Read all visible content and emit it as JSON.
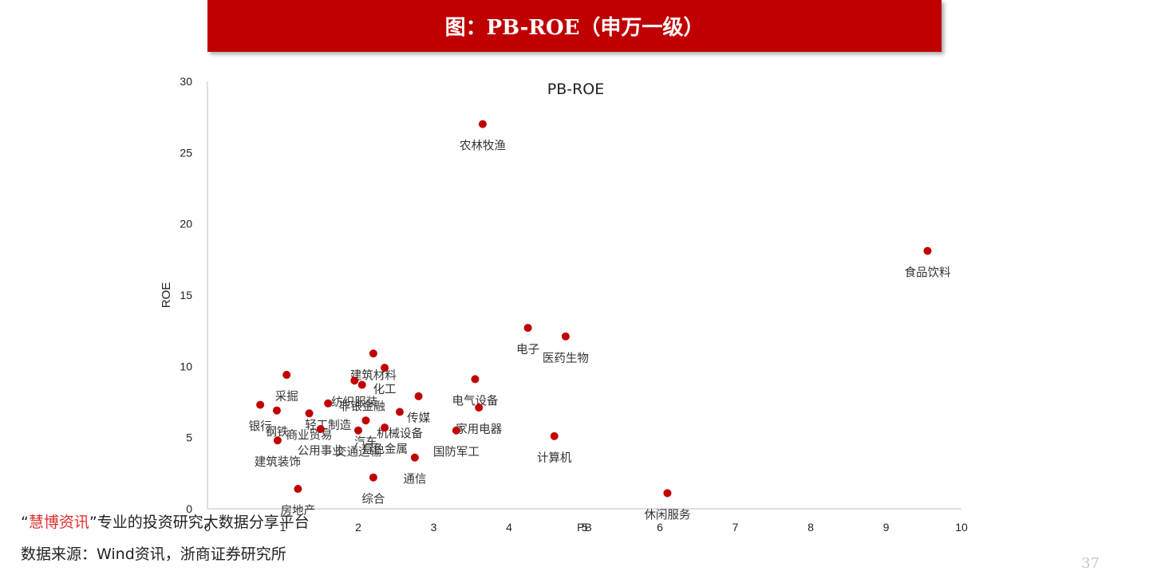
{
  "header": {
    "title": "图：PB-ROE（申万一级）"
  },
  "chart_data": {
    "type": "scatter",
    "title": "PB-ROE",
    "xlabel": "PB",
    "ylabel": "ROE",
    "xlim": [
      0,
      10
    ],
    "ylim": [
      0,
      30
    ],
    "xticks": [
      0,
      1,
      2,
      3,
      4,
      5,
      6,
      7,
      8,
      9,
      10
    ],
    "yticks": [
      0,
      5,
      10,
      15,
      20,
      25,
      30
    ],
    "marker_color": "#c00000",
    "grid": false,
    "points": [
      {
        "label": "农林牧渔",
        "x": 3.65,
        "y": 27.0
      },
      {
        "label": "食品饮料",
        "x": 9.55,
        "y": 18.1
      },
      {
        "label": "电子",
        "x": 4.25,
        "y": 12.7
      },
      {
        "label": "医药生物",
        "x": 4.75,
        "y": 12.1
      },
      {
        "label": "建筑材料",
        "x": 2.2,
        "y": 10.9
      },
      {
        "label": "化工",
        "x": 2.35,
        "y": 9.9
      },
      {
        "label": "采掘",
        "x": 1.05,
        "y": 9.4
      },
      {
        "label": "电气设备",
        "x": 3.55,
        "y": 9.1
      },
      {
        "label": "纺织服装",
        "x": 1.95,
        "y": 9.0
      },
      {
        "label": "非银金融",
        "x": 2.05,
        "y": 8.7
      },
      {
        "label": "传媒",
        "x": 2.8,
        "y": 7.9
      },
      {
        "label": "银行",
        "x": 0.7,
        "y": 7.3
      },
      {
        "label": "钢铁",
        "x": 0.92,
        "y": 6.9
      },
      {
        "label": "商业贸易",
        "x": 1.35,
        "y": 6.7
      },
      {
        "label": "家用电器",
        "x": 3.6,
        "y": 7.1
      },
      {
        "label": "汽车",
        "x": 2.1,
        "y": 6.2
      },
      {
        "label": "机械设备",
        "x": 2.55,
        "y": 6.8
      },
      {
        "label": "公用事业",
        "x": 1.5,
        "y": 5.6
      },
      {
        "label": "轻工制造",
        "x": 1.6,
        "y": 7.4
      },
      {
        "label": "有色金属",
        "x": 2.35,
        "y": 5.7
      },
      {
        "label": "交通运输",
        "x": 2.0,
        "y": 5.5
      },
      {
        "label": "建筑装饰",
        "x": 0.93,
        "y": 4.8
      },
      {
        "label": "国防军工",
        "x": 3.3,
        "y": 5.5
      },
      {
        "label": "计算机",
        "x": 4.6,
        "y": 5.1
      },
      {
        "label": "通信",
        "x": 2.75,
        "y": 3.6
      },
      {
        "label": "综合",
        "x": 2.2,
        "y": 2.2
      },
      {
        "label": "房地产",
        "x": 1.2,
        "y": 1.4
      },
      {
        "label": "休闲服务",
        "x": 6.1,
        "y": 1.1
      }
    ]
  },
  "footer": {
    "brand_quote_open": "“",
    "brand": "慧博资讯",
    "brand_quote_close": "”",
    "tagline": "专业的投资研究大数据分享平台",
    "source": "数据来源：Wind资讯，浙商证券研究所",
    "page_number": "37"
  }
}
